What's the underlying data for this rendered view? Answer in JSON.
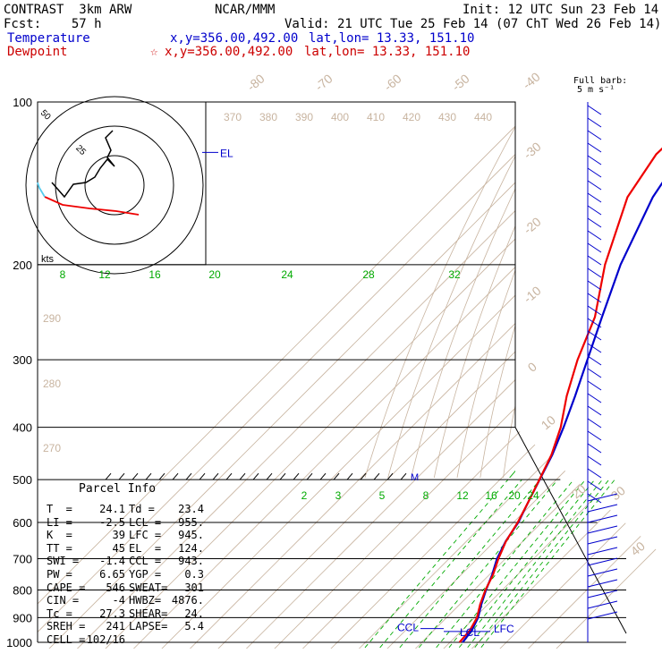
{
  "header": {
    "line1_left": "CONTRAST  3km ARW",
    "line1_center": "NCAR/MMM",
    "line1_right": "Init: 12 UTC Sun 23 Feb 14",
    "line2_left": "Fcst:    57 h",
    "line2_right": "Valid: 21 UTC Tue 25 Feb 14 (07 ChT Wed 26 Feb 14)",
    "temp_label": "Temperature",
    "temp_xy": "x,y=356.00,492.00",
    "temp_latlon": "lat,lon= 13.33, 151.10",
    "dew_label": "Dewpoint",
    "dew_star": "☆",
    "dew_xy": "x,y=356.00,492.00",
    "dew_latlon": "lat,lon= 13.33, 151.10",
    "barb_title": "Full barb:",
    "barb_units": "5 m s⁻¹"
  },
  "colors": {
    "temperature": "#0000cc",
    "dewpoint": "#ee0000",
    "isotherm": "#c8b4a0",
    "mixing_ratio": "#00aa00",
    "isobar": "#000000",
    "wind_barb": "#0000cc"
  },
  "chart_data": {
    "type": "line",
    "title": "",
    "pressure_levels": [
      "100",
      "200",
      "300",
      "400",
      "500",
      "600",
      "700",
      "800",
      "900",
      "1000"
    ],
    "pressure_range": [
      100,
      1000
    ],
    "isotherm_labels": [
      "-80",
      "-70",
      "-60",
      "-50",
      "-40",
      "-30",
      "-20",
      "-10",
      "0",
      "10",
      "20",
      "30",
      "40"
    ],
    "theta_labels_top": [
      "370",
      "380",
      "390",
      "400",
      "410",
      "420",
      "430",
      "440"
    ],
    "theta_labels_left": [
      "290",
      "280",
      "270"
    ],
    "mixing_ratio_labels_upper": [
      "8",
      "12",
      "16",
      "20",
      "24",
      "28",
      "32"
    ],
    "mixing_ratio_labels_lower": [
      "2",
      "3",
      "5",
      "8",
      "12",
      "16",
      "20",
      "24"
    ],
    "series": [
      {
        "name": "Temperature",
        "p": [
          1000,
          950,
          900,
          850,
          800,
          750,
          700,
          650,
          600,
          550,
          500,
          450,
          400,
          350,
          300,
          250,
          200,
          150,
          125,
          100
        ],
        "t": [
          24.5,
          23.5,
          21.2,
          17.6,
          14.2,
          11.0,
          7.0,
          3.9,
          1.7,
          -2.0,
          -5.9,
          -10.2,
          -16.0,
          -23.0,
          -31.5,
          -41.5,
          -53.5,
          -66.0,
          -71.0,
          -73.0
        ]
      },
      {
        "name": "Dewpoint",
        "p": [
          1000,
          950,
          900,
          850,
          800,
          750,
          700,
          650,
          600,
          550,
          500,
          450,
          400,
          350,
          300,
          250,
          200,
          150,
          125,
          100
        ],
        "t": [
          23.4,
          22.8,
          20.8,
          17.2,
          14.0,
          11.3,
          7.5,
          4.0,
          1.5,
          -2.0,
          -6.0,
          -10.5,
          -17.0,
          -26.0,
          -35.0,
          -44.0,
          -59.0,
          -75.0,
          -80.0,
          -79.0
        ]
      }
    ],
    "annotations": {
      "el": "EL",
      "ccl": "CCL",
      "lcl": "LCL",
      "lfc": "LFC",
      "mark_500": "M"
    },
    "hodograph": {
      "ring_labels": [
        "50",
        "25"
      ],
      "units": "kts"
    }
  },
  "parcel_info": {
    "title": "Parcel Info",
    "rows": [
      [
        "T  =",
        "24.1",
        "Td =",
        "23.4"
      ],
      [
        "LI =",
        "-2.5",
        "LCL =",
        "955."
      ],
      [
        "K  =",
        "39",
        "LFC =",
        "945."
      ],
      [
        "TT =",
        "45",
        "EL  =",
        "124."
      ],
      [
        "SWI =",
        "-1.4",
        "CCL =",
        "943."
      ],
      [
        "PW =",
        "6.65",
        "YGP =",
        "0.3"
      ],
      [
        "CAPE =",
        "546",
        "SWEAT=",
        "301"
      ],
      [
        "CIN =",
        "-4",
        "HWBZ=",
        "4876."
      ],
      [
        "Tc =",
        "27.3",
        "SHEAR=",
        "24."
      ],
      [
        "SREH =",
        "241",
        "LAPSE=",
        "5.4"
      ],
      [
        "CELL =",
        "102/16",
        "",
        ""
      ]
    ]
  }
}
